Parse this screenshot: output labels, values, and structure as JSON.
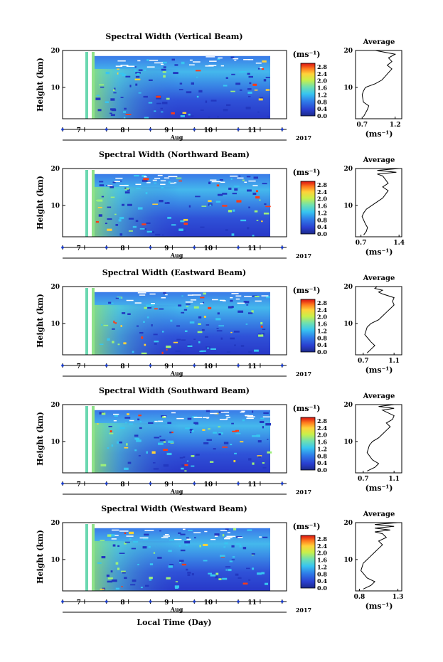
{
  "panels": [
    {
      "title": "Spectral Width (Vertical Beam)",
      "avg_title": "Average",
      "avg_xticks": [
        "0.7",
        "1.2"
      ],
      "avg_xlim": [
        0.6,
        1.3
      ]
    },
    {
      "title": "Spectral Width (Northward Beam)",
      "avg_title": "Average",
      "avg_xticks": [
        "0.7",
        "1.4"
      ],
      "avg_xlim": [
        0.6,
        1.45
      ]
    },
    {
      "title": "Spectral Width (Eastward Beam)",
      "avg_title": "Average",
      "avg_xticks": [
        "0.7",
        "1.1"
      ],
      "avg_xlim": [
        0.6,
        1.2
      ]
    },
    {
      "title": "Spectral Width (Southward Beam)",
      "avg_title": "Average",
      "avg_xticks": [
        "0.7",
        "1.1"
      ],
      "avg_xlim": [
        0.6,
        1.2
      ]
    },
    {
      "title": "Spectral Width (Westward Beam)",
      "avg_title": "Average",
      "avg_xticks": [
        "0.8",
        "1.3"
      ],
      "avg_xlim": [
        0.75,
        1.35
      ]
    }
  ],
  "ylabel": "Height (km)",
  "yticks": [
    "20",
    "10"
  ],
  "xticks": [
    "7",
    "8",
    "9",
    "10",
    "11"
  ],
  "month_label": "Aug",
  "year_label": "2017",
  "xlabel": "Local Time (Day)",
  "unit_label": "(ms⁻¹)",
  "avg_unit_label": "(ms⁻¹)",
  "colorbar_ticks": [
    "2.8",
    "2.4",
    "2.0",
    "1.6",
    "1.2",
    "0.8",
    "0.4",
    "0.0"
  ],
  "chart_data": [
    {
      "type": "heatmap",
      "title": "Spectral Width (Vertical Beam)",
      "ylabel": "Height (km)",
      "xlabel": "Local Time (Day)",
      "ylim": [
        1.5,
        20
      ],
      "xlim": [
        6.5,
        11.6
      ],
      "colorbar_range": [
        0.0,
        3.0
      ]
    },
    {
      "type": "line",
      "title": "Average",
      "xlabel": "(ms⁻¹)",
      "xlim": [
        0.6,
        1.3
      ],
      "ylim": [
        1.5,
        20
      ],
      "x": [
        0.72,
        0.75,
        0.78,
        0.8,
        0.72,
        0.7,
        0.72,
        0.75,
        0.9,
        1.0,
        1.05,
        1.1,
        1.15,
        1.08,
        1.15,
        1.1,
        1.2,
        1.05,
        0.9,
        0.88
      ],
      "y": [
        2,
        3,
        4,
        5,
        6,
        8,
        9,
        10,
        11,
        12,
        13,
        14,
        15,
        16,
        17,
        18,
        19,
        19.5,
        20,
        20
      ]
    },
    {
      "type": "heatmap",
      "title": "Spectral Width (Northward Beam)",
      "ylabel": "Height (km)",
      "xlabel": "Local Time (Day)",
      "ylim": [
        1.5,
        20
      ],
      "xlim": [
        6.5,
        11.6
      ],
      "colorbar_range": [
        0.0,
        3.0
      ]
    },
    {
      "type": "line",
      "title": "Average",
      "xlabel": "(ms⁻¹)",
      "xlim": [
        0.6,
        1.45
      ],
      "ylim": [
        1.5,
        20
      ],
      "x": [
        0.75,
        0.8,
        0.82,
        0.78,
        0.72,
        0.75,
        0.8,
        0.9,
        1.0,
        1.1,
        1.15,
        1.2,
        1.1,
        1.2,
        1.15,
        1.1,
        1.0,
        1.35,
        1.0,
        1.4
      ],
      "y": [
        2,
        3,
        4,
        5,
        7,
        8,
        9,
        10,
        11,
        12,
        13,
        14,
        15,
        16,
        17,
        18,
        18.5,
        19,
        19.5,
        20
      ]
    },
    {
      "type": "heatmap",
      "title": "Spectral Width (Eastward Beam)",
      "ylabel": "Height (km)",
      "xlabel": "Local Time (Day)",
      "ylim": [
        1.5,
        20
      ],
      "xlim": [
        6.5,
        11.6
      ],
      "colorbar_range": [
        0.0,
        3.0
      ]
    },
    {
      "type": "line",
      "title": "Average",
      "xlabel": "(ms⁻¹)",
      "xlim": [
        0.6,
        1.2
      ],
      "ylim": [
        1.5,
        20
      ],
      "x": [
        0.75,
        0.8,
        0.85,
        0.8,
        0.72,
        0.75,
        0.8,
        0.9,
        0.95,
        1.0,
        1.05,
        1.1,
        1.08,
        1.1,
        0.95,
        0.9,
        0.95,
        0.85,
        0.88
      ],
      "y": [
        2,
        3,
        4,
        5,
        7,
        9,
        10,
        11,
        12,
        13,
        14,
        15,
        16,
        17,
        18,
        18.5,
        19,
        19.5,
        20
      ]
    },
    {
      "type": "heatmap",
      "title": "Spectral Width (Southward Beam)",
      "ylabel": "Height (km)",
      "xlabel": "Local Time (Day)",
      "ylim": [
        1.5,
        20
      ],
      "xlim": [
        6.5,
        11.6
      ],
      "colorbar_range": [
        0.0,
        3.0
      ]
    },
    {
      "type": "line",
      "title": "Average",
      "xlabel": "(ms⁻¹)",
      "xlim": [
        0.6,
        1.2
      ],
      "ylim": [
        1.5,
        20
      ],
      "x": [
        0.75,
        0.85,
        0.9,
        0.82,
        0.75,
        0.78,
        0.82,
        0.9,
        0.95,
        1.0,
        1.05,
        1.0,
        1.08,
        1.1,
        1.0,
        0.95,
        1.1,
        0.9,
        1.1
      ],
      "y": [
        2,
        3,
        4,
        5,
        7,
        9,
        10,
        11,
        12,
        13,
        14,
        15,
        16,
        17,
        18,
        18.5,
        19,
        19.5,
        20
      ]
    },
    {
      "type": "heatmap",
      "title": "Spectral Width (Westward Beam)",
      "ylabel": "Height (km)",
      "xlabel": "Local Time (Day)",
      "ylim": [
        1.5,
        20
      ],
      "xlim": [
        6.5,
        11.6
      ],
      "colorbar_range": [
        0.0,
        3.0
      ]
    },
    {
      "type": "line",
      "title": "Average",
      "xlabel": "(ms⁻¹)",
      "xlim": [
        0.75,
        1.35
      ],
      "ylim": [
        1.5,
        20
      ],
      "x": [
        0.85,
        0.95,
        1.0,
        0.9,
        0.82,
        0.85,
        0.9,
        0.95,
        1.0,
        1.05,
        1.1,
        1.05,
        1.15,
        1.1,
        1.0,
        1.2,
        1.0,
        1.25,
        1.0,
        1.3
      ],
      "y": [
        2,
        3,
        4,
        5,
        7,
        9,
        10,
        11,
        12,
        13,
        14,
        15,
        16,
        17,
        17.5,
        18,
        18.5,
        19,
        19.5,
        20
      ]
    }
  ]
}
